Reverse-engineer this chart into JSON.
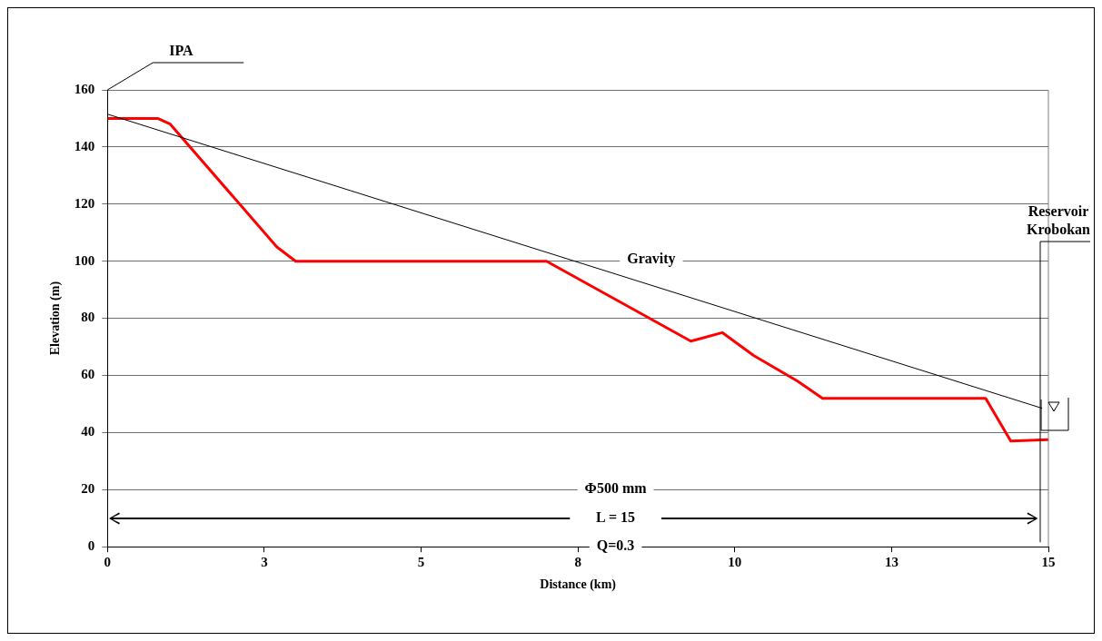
{
  "chart_data": {
    "type": "line",
    "xlabel": "Distance (km)",
    "ylabel": "Elevation (m)",
    "xlim": [
      0,
      15
    ],
    "xticks": [
      0,
      {
        "value": 2.5,
        "label": "3"
      },
      5,
      {
        "value": 7.5,
        "label": "8"
      },
      10,
      {
        "value": 12.5,
        "label": "13"
      },
      15
    ],
    "ylim": [
      0,
      160
    ],
    "yticks": [
      0,
      20,
      40,
      60,
      80,
      100,
      120,
      140,
      160
    ],
    "grid": "y",
    "legend": false,
    "marker": "none",
    "series": [
      {
        "color": "#ff0000",
        "x": [
          0,
          0.8,
          1.0,
          2.7,
          3.0,
          7.0,
          9.3,
          9.8,
          10.3,
          11.0,
          11.4,
          14.0,
          14.4,
          15
        ],
        "values": [
          150,
          150,
          148,
          105,
          100,
          100,
          72,
          75,
          67,
          58,
          52,
          52,
          37,
          37.5
        ]
      },
      {
        "color": "#000000",
        "x": [
          0,
          14.9
        ],
        "values": [
          151.5,
          48.5
        ]
      }
    ],
    "annotations": [
      "IPA",
      "Gravity",
      "Reservoir Krobokan",
      "Φ500 mm",
      "L = 15",
      "Q=0.3"
    ]
  }
}
